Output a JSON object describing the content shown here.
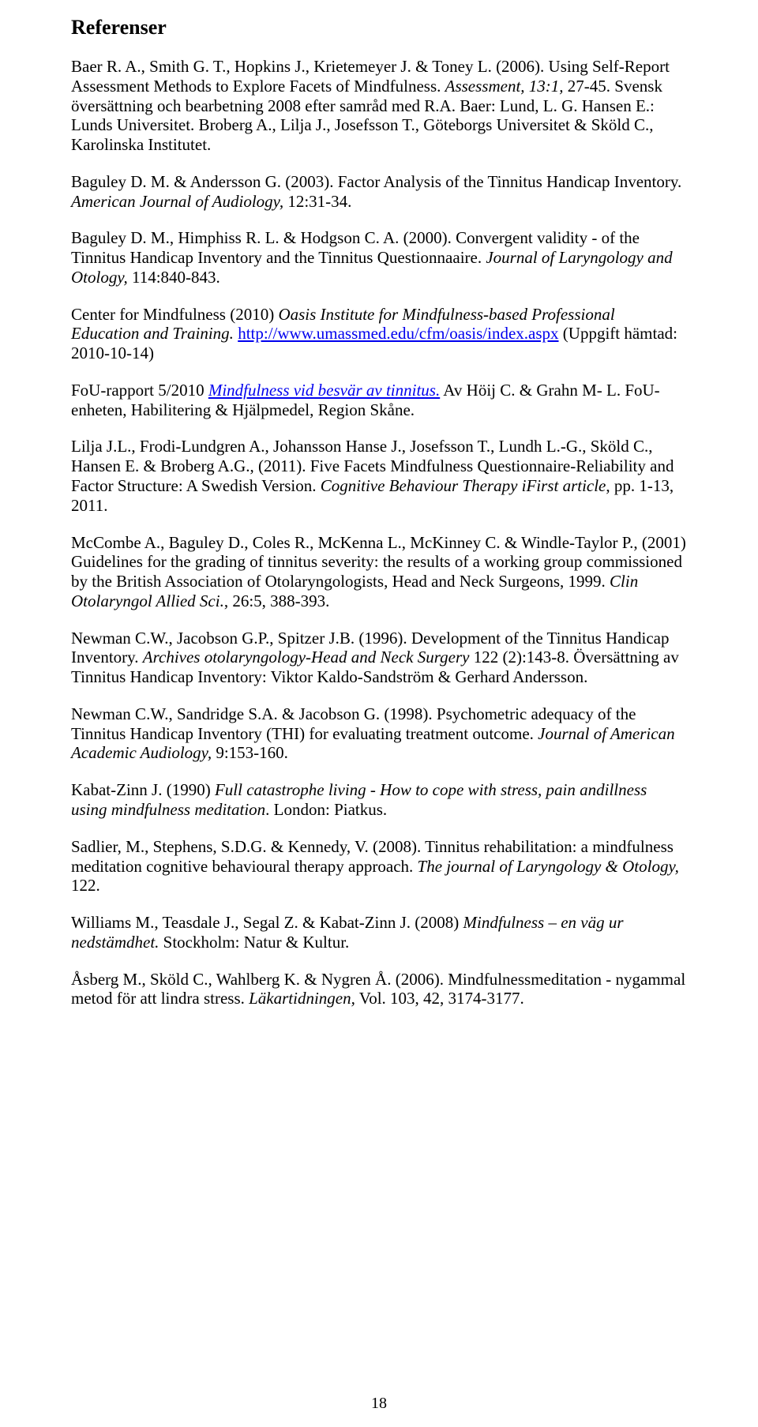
{
  "heading": "Referenser",
  "page_number": "18",
  "link_color": "#0000ee",
  "text_color": "#000000",
  "background": "#ffffff",
  "refs": [
    {
      "segments": [
        {
          "t": "Baer R. A., Smith G. T., Hopkins J., Krietemeyer J. & Toney L. (2006). Using Self-Report Assessment Methods to Explore Facets of Mindfulness. "
        },
        {
          "t": "Assessment, 13:1,",
          "i": true
        },
        {
          "t": " 27-45. Svensk översättning och bearbetning 2008 efter samråd med R.A. Baer: Lund, L. G. Hansen E.: Lunds Universitet. Broberg A., Lilja J., Josefsson T., Göteborgs Universitet & Sköld C., Karolinska Institutet."
        }
      ]
    },
    {
      "segments": [
        {
          "t": "Baguley D. M. & Andersson G. (2003). Factor Analysis of the Tinnitus Handicap Inventory. "
        },
        {
          "t": "American Journal of Audiology,",
          "i": true
        },
        {
          "t": " 12:31-34."
        }
      ]
    },
    {
      "segments": [
        {
          "t": "Baguley D. M., Himphiss R. L. & Hodgson C. A. (2000). Convergent validity - of the Tinnitus Handicap Inventory and the Tinnitus Questionnaaire. "
        },
        {
          "t": "Journal of Laryngology and Otology,",
          "i": true
        },
        {
          "t": " 114:840-843."
        }
      ]
    },
    {
      "segments": [
        {
          "t": "Center for Mindfulness (2010) "
        },
        {
          "t": "Oasis Institute for Mindfulness-based Professional Education and Training.",
          "i": true
        },
        {
          "t": " "
        },
        {
          "t": "http://www.umassmed.edu/cfm/oasis/index.aspx",
          "a": true
        },
        {
          "t": " (Uppgift hämtad: 2010-10-14)"
        }
      ]
    },
    {
      "segments": [
        {
          "t": "FoU-rapport 5/2010 "
        },
        {
          "t": "Mindfulness vid besvär av tinnitus.",
          "a": true,
          "i": true
        },
        {
          "t": " Av Höij C. & Grahn M- L. FoU-enheten, Habilitering & Hjälpmedel, Region Skåne."
        }
      ]
    },
    {
      "segments": [
        {
          "t": "Lilja J.L., Frodi-Lundgren A., Johansson Hanse J., Josefsson T., Lundh L.-G., Sköld C., Hansen E. & Broberg A.G., (2011). Five Facets Mindfulness Questionnaire-Reliability and Factor Structure: A Swedish Version. "
        },
        {
          "t": "Cognitive Behaviour Therapy iFirst article",
          "i": true
        },
        {
          "t": ", pp. 1-13, 2011."
        }
      ]
    },
    {
      "segments": [
        {
          "t": "McCombe A., Baguley D., Coles R., McKenna L., McKinney C. & Windle-Taylor P., (2001) Guidelines for the grading of tinnitus severity: the results of a working group commissioned by the British Association of Otolaryngologists, Head and Neck Surgeons, 1999. "
        },
        {
          "t": "Clin Otolaryngol Allied Sci.",
          "i": true
        },
        {
          "t": ", 26:5, 388-393."
        }
      ]
    },
    {
      "segments": [
        {
          "t": "Newman C.W., Jacobson G.P., Spitzer J.B. (1996). Development of the Tinnitus Handicap Inventory. "
        },
        {
          "t": "Archives otolaryngology-Head and Neck Surgery",
          "i": true
        },
        {
          "t": " 122 (2):143-8. Översättning av Tinnitus Handicap Inventory: Viktor Kaldo-Sandström & Gerhard Andersson."
        }
      ]
    },
    {
      "segments": [
        {
          "t": "Newman C.W., Sandridge S.A. & Jacobson G. (1998). Psychometric adequacy of the Tinnitus Handicap Inventory (THI) for evaluating treatment outcome. "
        },
        {
          "t": "Journal of American Academic Audiology,",
          "i": true
        },
        {
          "t": " 9:153-160."
        }
      ]
    },
    {
      "segments": [
        {
          "t": "Kabat-Zinn J. (1990) "
        },
        {
          "t": "Full catastrophe living - How to cope with stress, pain andillness using mindfulness meditation",
          "i": true
        },
        {
          "t": ". London: Piatkus."
        }
      ]
    },
    {
      "segments": [
        {
          "t": "Sadlier, M., Stephens, S.D.G. & Kennedy, V. (2008). Tinnitus rehabilitation: a mindfulness meditation cognitive behavioural therapy approach. "
        },
        {
          "t": "The journal of Laryngology & Otology,",
          "i": true
        },
        {
          "t": " 122."
        }
      ]
    },
    {
      "segments": [
        {
          "t": "Williams M., Teasdale J., Segal Z. & Kabat-Zinn J. (2008) "
        },
        {
          "t": "Mindfulness – en väg ur nedstämdhet.",
          "i": true
        },
        {
          "t": " Stockholm: Natur & Kultur."
        }
      ]
    },
    {
      "segments": [
        {
          "t": "Åsberg M., Sköld C., Wahlberg K. & Nygren Å. (2006). Mindfulnessmeditation - nygammal metod för att lindra stress. "
        },
        {
          "t": "Läkartidningen,",
          "i": true
        },
        {
          "t": " Vol. 103, 42, 3174-3177."
        }
      ]
    }
  ]
}
